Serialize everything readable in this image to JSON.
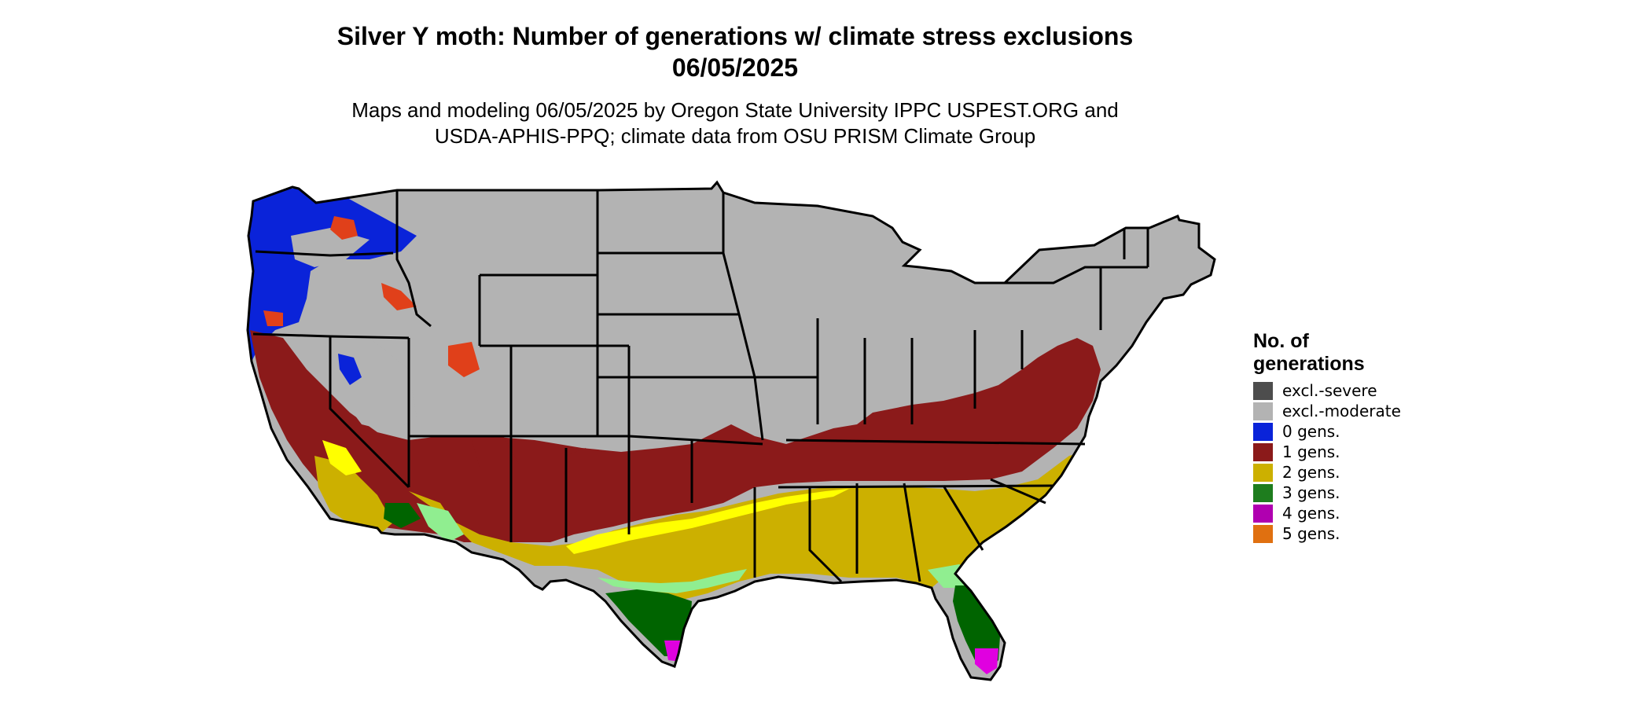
{
  "title": {
    "line1": "Silver Y moth: Number of generations w/ climate stress exclusions",
    "line2": "06/05/2025"
  },
  "subtitle": {
    "line1": "Maps and modeling 06/05/2025 by Oregon State University IPPC USPEST.ORG and",
    "line2": "USDA-APHIS-PPQ; climate data from OSU PRISM Climate Group"
  },
  "legend": {
    "title_line1": "No. of",
    "title_line2": "generations",
    "items": [
      {
        "label": "excl.-severe",
        "color": "#4d4d4d"
      },
      {
        "label": "excl.-moderate",
        "color": "#b3b3b3"
      },
      {
        "label": "0 gens.",
        "color": "#0a23d9"
      },
      {
        "label": "1 gens.",
        "color": "#8b1a1a"
      },
      {
        "label": "2 gens.",
        "color": "#ccb000"
      },
      {
        "label": "3 gens.",
        "color": "#1e7d1e"
      },
      {
        "label": "4 gens.",
        "color": "#b000b0"
      },
      {
        "label": "5 gens.",
        "color": "#e07010"
      }
    ]
  },
  "map_colors": {
    "gray": "#b3b3b3",
    "blue": "#0a23d9",
    "red": "#8b1a1a",
    "orange_red": "#e0401a",
    "gold": "#ccb000",
    "yellow": "#ffff00",
    "light_green": "#90ee90",
    "green": "#006400",
    "magenta": "#e000e0",
    "border": "#000000"
  }
}
